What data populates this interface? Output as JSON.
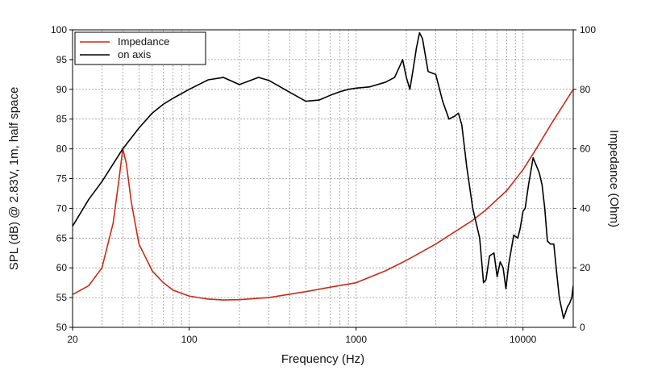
{
  "chart_data": {
    "type": "line",
    "xlabel": "Frequency (Hz)",
    "ylabel_left": "SPL (dB) @ 2.83V, 1m, half space",
    "ylabel_right": "Impedance (Ohm)",
    "x_scale": "log",
    "xlim": [
      20,
      20000
    ],
    "ylim_left": [
      50,
      100
    ],
    "ylim_right": [
      0,
      100
    ],
    "x_ticks": [
      20,
      100,
      1000,
      10000
    ],
    "x_tick_labels": [
      "20",
      "100",
      "1000",
      "10000"
    ],
    "y_left_ticks": [
      50,
      55,
      60,
      65,
      70,
      75,
      80,
      85,
      90,
      95,
      100
    ],
    "y_left_tick_labels": [
      "50",
      "55",
      "60",
      "65",
      "70",
      "75",
      "80",
      "85",
      "90",
      "95",
      "100"
    ],
    "y_right_ticks": [
      0,
      20,
      40,
      60,
      80,
      100
    ],
    "y_right_tick_labels": [
      "0",
      "20",
      "40",
      "60",
      "80",
      "100"
    ],
    "grid": true,
    "legend_position": "top-left",
    "series": [
      {
        "name": "Impedance",
        "color": "#cc2a16",
        "axis": "right",
        "x": [
          20,
          25,
          30,
          35,
          38,
          40,
          42,
          45,
          50,
          60,
          70,
          80,
          100,
          130,
          160,
          200,
          300,
          500,
          700,
          1000,
          1500,
          2000,
          3000,
          4000,
          5000,
          6000,
          7000,
          8000,
          10000,
          12000,
          15000,
          20000
        ],
        "values": [
          11,
          14,
          20,
          35,
          50,
          60,
          55,
          42,
          28,
          19,
          15,
          12.5,
          10.5,
          9.5,
          9.2,
          9.3,
          10,
          12,
          13.5,
          15,
          19,
          22.5,
          28,
          32.5,
          36,
          39.5,
          43,
          46,
          53,
          60,
          69,
          80
        ]
      },
      {
        "name": "on axis",
        "color": "#000000",
        "axis": "left",
        "x": [
          20,
          25,
          30,
          40,
          50,
          60,
          70,
          80,
          100,
          130,
          160,
          200,
          260,
          300,
          400,
          500,
          600,
          700,
          800,
          900,
          1000,
          1200,
          1500,
          1700,
          1800,
          1900,
          2000,
          2100,
          2200,
          2300,
          2400,
          2500,
          2700,
          3000,
          3300,
          3600,
          3900,
          4100,
          4300,
          4600,
          5000,
          5500,
          5800,
          6000,
          6300,
          6700,
          7000,
          7300,
          7600,
          7900,
          8200,
          8800,
          9300,
          9600,
          10000,
          10300,
          10800,
          11500,
          12500,
          13000,
          13500,
          14000,
          14600,
          15300,
          15800,
          16500,
          17500,
          18500,
          19000,
          19600,
          20000
        ],
        "values": [
          67,
          71.5,
          74.5,
          80,
          83.5,
          86,
          87.5,
          88.5,
          90,
          91.6,
          92,
          90.8,
          92,
          91.5,
          89.5,
          88,
          88.2,
          89,
          89.6,
          90,
          90.2,
          90.4,
          91.2,
          92,
          93.5,
          95,
          92,
          90,
          93.5,
          97,
          99.5,
          98.5,
          93,
          92.5,
          88,
          85,
          85.5,
          86,
          84,
          77,
          70,
          65,
          57.5,
          58,
          62,
          62.5,
          58.5,
          61,
          60,
          56.5,
          60.5,
          65.5,
          65,
          66.5,
          69.5,
          70,
          74,
          78.5,
          76,
          74,
          70,
          64.5,
          64,
          64,
          60,
          55,
          51.5,
          53.5,
          54,
          55,
          57
        ]
      }
    ]
  }
}
